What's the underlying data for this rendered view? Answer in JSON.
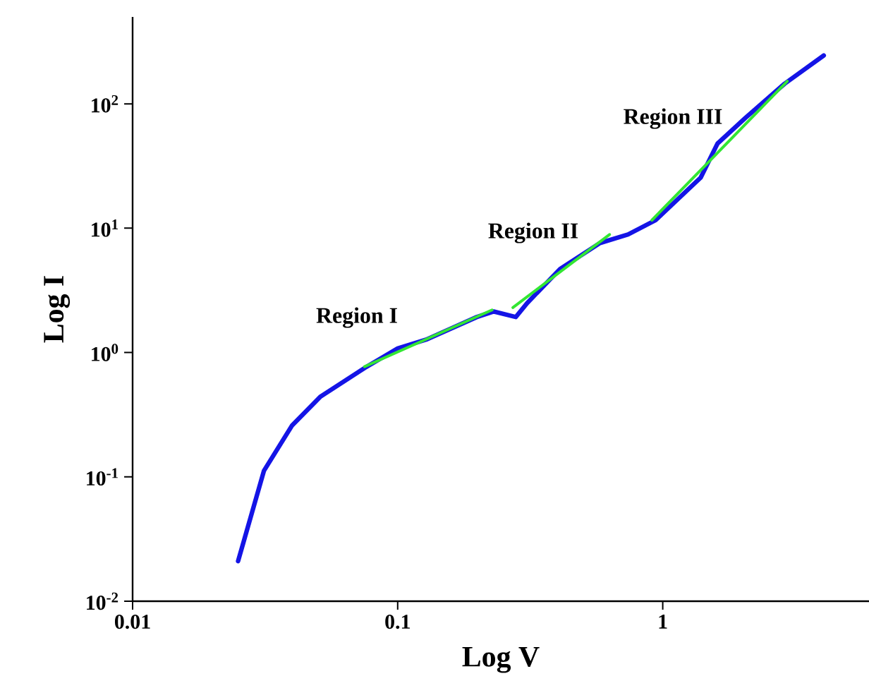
{
  "chart_data": {
    "type": "line",
    "xlabel": "Log V",
    "ylabel": "Log I",
    "log": "xy",
    "grid": false,
    "marker": "none",
    "line_style": "solid",
    "xlim": [
      0.01,
      6
    ],
    "ylim": [
      0.01,
      500
    ],
    "xticks": [
      0.01,
      0.1,
      1
    ],
    "yticks": [
      {
        "value": 0.01,
        "label": "10$^{-2}$"
      },
      {
        "value": 0.1,
        "label": "10$^{-1}$"
      },
      {
        "value": 1,
        "label": "10$^{0}$"
      },
      {
        "value": 10,
        "label": "10$^{1}$"
      },
      {
        "value": 100,
        "label": "10$^{2}$"
      }
    ],
    "series": [
      {
        "color": "#1414e6",
        "x": [
          0.025,
          0.0313,
          0.04,
          0.051,
          0.075,
          0.1,
          0.128,
          0.199,
          0.23,
          0.279,
          0.308,
          0.41,
          0.58,
          0.74,
          0.94,
          1.39,
          1.61,
          2.05,
          2.88,
          4.05
        ],
        "values": [
          0.021,
          0.112,
          0.26,
          0.44,
          0.75,
          1.08,
          1.27,
          1.93,
          2.14,
          1.93,
          2.5,
          4.7,
          7.6,
          8.9,
          11.6,
          25.5,
          48,
          77,
          145,
          245
        ]
      },
      {
        "color": "#33e633",
        "x": [
          0.075,
          0.227
        ],
        "values": [
          0.77,
          2.2
        ]
      },
      {
        "color": "#33e633",
        "x": [
          0.272,
          0.63
        ],
        "values": [
          2.3,
          8.9
        ]
      },
      {
        "color": "#33e633",
        "x": [
          0.91,
          2.95
        ],
        "values": [
          11.6,
          152
        ]
      }
    ],
    "annotations": [
      "Region I",
      "Region II",
      "Region III"
    ]
  }
}
